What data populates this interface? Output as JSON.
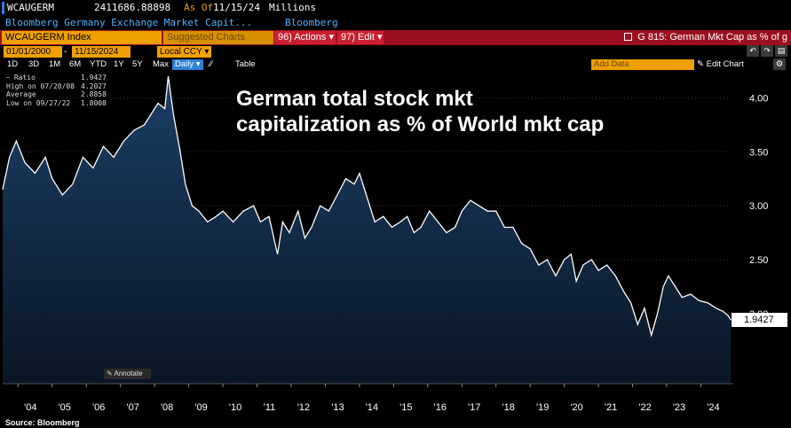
{
  "header": {
    "ticker": "WCAUGERM",
    "value": "2411686.88898",
    "as_of_label": "As Of",
    "as_of_date": "11/15/24",
    "units": "Millions",
    "description": "Bloomberg Germany Exchange Market Capit...",
    "source": "Bloomberg"
  },
  "command_bar": {
    "security": "WCAUGERM Index",
    "suggested_charts": "Suggested Charts",
    "actions": "96) Actions",
    "edit": "97) Edit",
    "chart_title": "G 815: German Mkt Cap as % of g"
  },
  "range": {
    "start": "01/01/2000",
    "end": "11/15/2024",
    "currency": "Local CCY"
  },
  "periods": [
    "1D",
    "3D",
    "1M",
    "6M",
    "YTD",
    "1Y",
    "5Y",
    "Max"
  ],
  "frequency": "Daily",
  "table_label": "Table",
  "add_data_placeholder": "Add Data",
  "edit_chart_label": "Edit Chart",
  "legend": {
    "ratio_label": "Ratio",
    "ratio_value": "1.9427",
    "high_label": "High on 07/20/08",
    "high_value": "4.2027",
    "avg_label": "Average",
    "avg_value": "2.8858",
    "low_label": "Low on 09/27/22",
    "low_value": "1.8008"
  },
  "headline": "German total stock mkt capitalization as % of World mkt cap",
  "annotate_label": "Annotate",
  "last_value": "1.9427",
  "source_note": "Source: Bloomberg",
  "colors": {
    "bg": "#000000",
    "area_top": "#1b3f66",
    "area_bottom": "#0a1624",
    "line": "#ffffff",
    "accent_orange": "#f0a000",
    "bar_red": "#9b1020"
  },
  "chart_data": {
    "type": "area",
    "title": "German total stock mkt capitalization as % of World mkt cap",
    "ylabel": "",
    "xlabel": "",
    "ylim": [
      1.35,
      4.25
    ],
    "yticks": [
      2.0,
      2.5,
      3.0,
      3.5,
      4.0
    ],
    "ytick_labels": [
      "2.00",
      "2.50",
      "3.00",
      "3.50",
      "4.00"
    ],
    "xlim": [
      2003.55,
      2024.95
    ],
    "xticks": [
      2004,
      2005,
      2006,
      2007,
      2008,
      2009,
      2010,
      2011,
      2012,
      2013,
      2014,
      2015,
      2016,
      2017,
      2018,
      2019,
      2020,
      2021,
      2022,
      2023,
      2024
    ],
    "xtick_labels": [
      "'04",
      "'05",
      "'06",
      "'07",
      "'08",
      "'09",
      "'10",
      "'11",
      "'12",
      "'13",
      "'14",
      "'15",
      "'16",
      "'17",
      "'18",
      "'19",
      "'20",
      "'21",
      "'22",
      "'23",
      "'24"
    ],
    "series": [
      {
        "name": "Ratio",
        "x": [
          2003.55,
          2003.75,
          2003.95,
          2004.2,
          2004.5,
          2004.8,
          2005.0,
          2005.3,
          2005.6,
          2005.9,
          2006.2,
          2006.5,
          2006.8,
          2007.1,
          2007.4,
          2007.7,
          2007.9,
          2008.1,
          2008.3,
          2008.4,
          2008.55,
          2008.75,
          2008.9,
          2009.1,
          2009.3,
          2009.55,
          2009.8,
          2010.0,
          2010.3,
          2010.6,
          2010.9,
          2011.1,
          2011.35,
          2011.6,
          2011.75,
          2011.95,
          2012.2,
          2012.4,
          2012.6,
          2012.85,
          2013.1,
          2013.35,
          2013.6,
          2013.85,
          2014.0,
          2014.2,
          2014.45,
          2014.7,
          2014.95,
          2015.2,
          2015.4,
          2015.6,
          2015.8,
          2016.05,
          2016.3,
          2016.55,
          2016.8,
          2017.0,
          2017.25,
          2017.5,
          2017.75,
          2018.0,
          2018.25,
          2018.5,
          2018.75,
          2019.0,
          2019.25,
          2019.5,
          2019.75,
          2020.0,
          2020.2,
          2020.35,
          2020.55,
          2020.8,
          2021.0,
          2021.25,
          2021.5,
          2021.75,
          2021.95,
          2022.15,
          2022.35,
          2022.55,
          2022.73,
          2022.9,
          2023.05,
          2023.25,
          2023.45,
          2023.7,
          2023.95,
          2024.2,
          2024.45,
          2024.65,
          2024.8,
          2024.88
        ],
        "values": [
          3.15,
          3.45,
          3.6,
          3.4,
          3.3,
          3.45,
          3.25,
          3.1,
          3.2,
          3.45,
          3.35,
          3.55,
          3.45,
          3.6,
          3.7,
          3.75,
          3.85,
          3.95,
          3.9,
          4.2,
          3.85,
          3.5,
          3.2,
          3.0,
          2.95,
          2.85,
          2.9,
          2.95,
          2.85,
          2.95,
          3.0,
          2.85,
          2.9,
          2.55,
          2.85,
          2.75,
          2.95,
          2.7,
          2.8,
          3.0,
          2.95,
          3.1,
          3.25,
          3.2,
          3.3,
          3.1,
          2.85,
          2.9,
          2.8,
          2.85,
          2.9,
          2.75,
          2.8,
          2.95,
          2.85,
          2.75,
          2.8,
          2.95,
          3.05,
          3.0,
          2.95,
          2.95,
          2.8,
          2.8,
          2.65,
          2.6,
          2.45,
          2.5,
          2.35,
          2.5,
          2.55,
          2.3,
          2.45,
          2.5,
          2.4,
          2.45,
          2.35,
          2.2,
          2.1,
          1.9,
          2.05,
          1.8,
          2.0,
          2.25,
          2.35,
          2.25,
          2.15,
          2.18,
          2.12,
          2.1,
          2.05,
          2.02,
          1.98,
          1.94
        ]
      }
    ]
  }
}
